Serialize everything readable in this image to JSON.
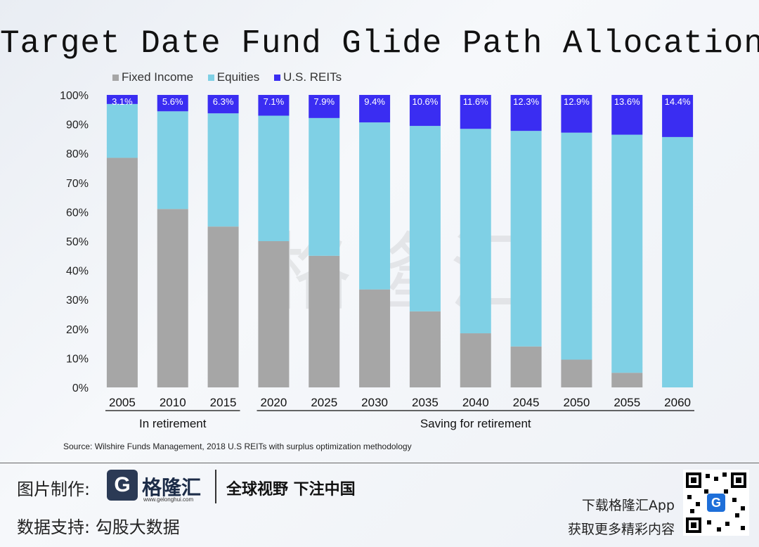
{
  "chart_data": {
    "type": "bar",
    "stacked": true,
    "title": "Target Date Fund Glide Path Allocations",
    "categories": [
      "2005",
      "2010",
      "2015",
      "2020",
      "2025",
      "2030",
      "2035",
      "2040",
      "2045",
      "2050",
      "2055",
      "2060"
    ],
    "series": [
      {
        "name": "Fixed Income",
        "color": "#a6a6a6",
        "values": [
          78.5,
          61.0,
          55.0,
          50.0,
          45.0,
          33.5,
          26.0,
          18.5,
          14.0,
          9.5,
          5.0,
          0.0
        ]
      },
      {
        "name": "Equities",
        "color": "#7fd0e5",
        "values": [
          18.4,
          33.4,
          38.7,
          42.9,
          47.1,
          57.1,
          63.4,
          69.9,
          73.7,
          77.6,
          81.4,
          85.6
        ]
      },
      {
        "name": "U.S. REITs",
        "color": "#3a2df2",
        "values": [
          3.1,
          5.6,
          6.3,
          7.1,
          7.9,
          9.4,
          10.6,
          11.6,
          12.3,
          12.9,
          13.6,
          14.4
        ]
      }
    ],
    "reit_labels": [
      "3.1%",
      "5.6%",
      "6.3%",
      "7.1%",
      "7.9%",
      "9.4%",
      "10.6%",
      "11.6%",
      "12.3%",
      "12.9%",
      "13.6%",
      "14.4%"
    ],
    "y_ticks": [
      "0%",
      "10%",
      "20%",
      "30%",
      "40%",
      "50%",
      "60%",
      "70%",
      "80%",
      "90%",
      "100%"
    ],
    "ylim": [
      0,
      100
    ],
    "groups": [
      {
        "label": "In retirement",
        "span": [
          0,
          2
        ]
      },
      {
        "label": "Saving for retirement",
        "span": [
          3,
          11
        ]
      }
    ],
    "legend_position": "top-left"
  },
  "source": "Source: Wilshire Funds Management, 2018   U.S REITs with surplus optimization methodology",
  "watermark": "格隆汇",
  "footer": {
    "made_by_label": "图片制作:",
    "logo_letter": "G",
    "logo_text": "格隆汇",
    "logo_url": "www.gelonghui.com",
    "slogan": "全球视野 下注中国",
    "data_support": "数据支持:  勾股大数据",
    "download_line1": "下载格隆汇App",
    "download_line2": "获取更多精彩内容",
    "qr_letter": "G"
  }
}
